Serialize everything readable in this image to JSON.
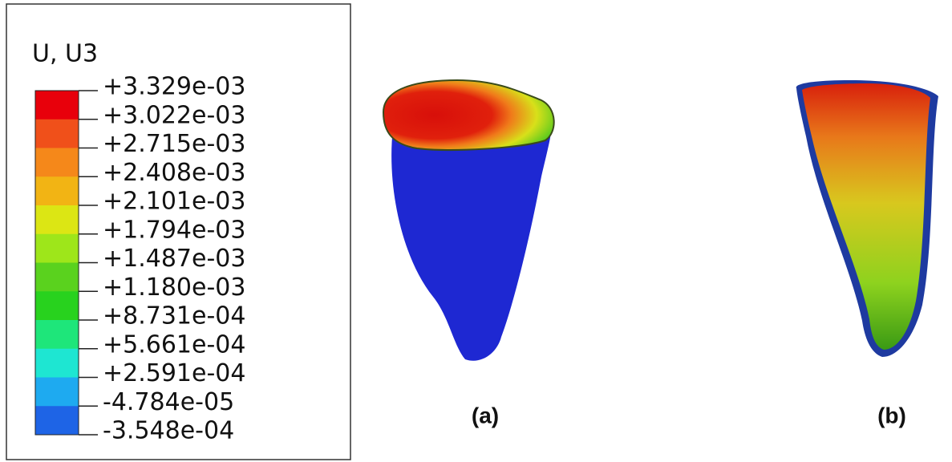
{
  "legend": {
    "title": "U, U3",
    "labels": [
      "+3.329e-03",
      "+3.022e-03",
      "+2.715e-03",
      "+2.408e-03",
      "+2.101e-03",
      "+1.794e-03",
      "+1.487e-03",
      "+1.180e-03",
      "+8.731e-04",
      "+5.661e-04",
      "+2.591e-04",
      "-4.784e-05",
      "-3.548e-04"
    ],
    "colors": [
      "#e8000b",
      "#f0501a",
      "#f5881a",
      "#f2b414",
      "#dce614",
      "#9ee61a",
      "#5ad21e",
      "#28d21e",
      "#1ee67a",
      "#1ee6d2",
      "#1eaaf0",
      "#1e64e6",
      "#0a14e6"
    ]
  },
  "captions": [
    "(a)",
    "(b)"
  ]
}
